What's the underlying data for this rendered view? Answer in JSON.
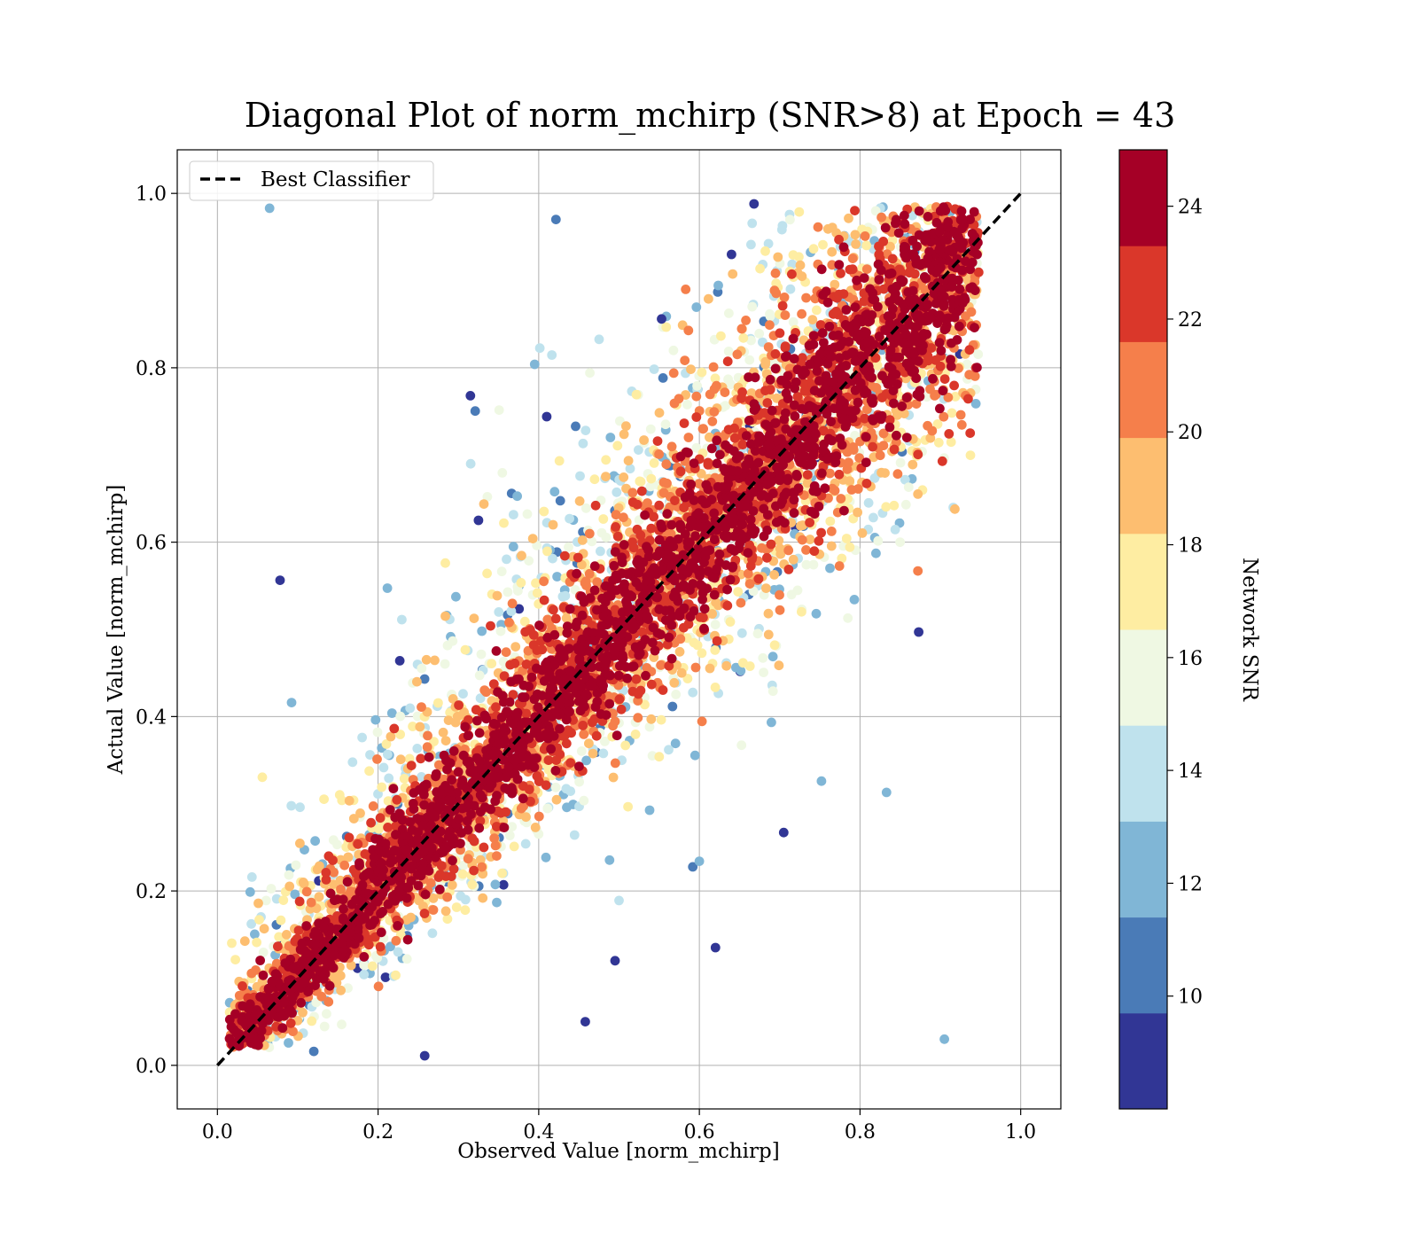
{
  "chart_data": {
    "type": "scatter",
    "title": "Diagonal Plot of norm_mchirp (SNR>8) at Epoch = 43",
    "xlabel": "Observed Value [norm_mchirp]",
    "ylabel": "Actual Value [norm_mchirp]",
    "xlim": [
      -0.05,
      1.05
    ],
    "ylim": [
      -0.05,
      1.05
    ],
    "xticks": [
      "0.0",
      "0.2",
      "0.4",
      "0.6",
      "0.8",
      "1.0"
    ],
    "yticks": [
      "0.0",
      "0.2",
      "0.4",
      "0.6",
      "0.8",
      "1.0"
    ],
    "grid": true,
    "legend": {
      "position": "upper-left",
      "entries": [
        "Best Classifier"
      ]
    },
    "reference_line": {
      "name": "Best Classifier",
      "style": "dashed",
      "color": "#000000",
      "x": [
        0,
        1
      ],
      "y": [
        0,
        1
      ]
    },
    "colorbar": {
      "label": "Network SNR",
      "range": [
        8,
        25
      ],
      "ticks": [
        "10",
        "12",
        "14",
        "16",
        "18",
        "20",
        "22",
        "24"
      ],
      "tick_values": [
        10,
        12,
        14,
        16,
        18,
        20,
        22,
        24
      ],
      "bins": [
        8,
        9.7,
        11.4,
        13.1,
        14.8,
        16.5,
        18.2,
        19.9,
        21.6,
        23.3,
        25
      ],
      "colors": [
        "#313695",
        "#4a7bb7",
        "#80b6d6",
        "#bfe2ed",
        "#eff8e3",
        "#feeda2",
        "#fdbe70",
        "#f57f4b",
        "#da372a",
        "#a50026"
      ]
    },
    "series": [
      {
        "points_note_values_only": true,
        "points": [
          [
            0.668,
            0.988,
            8.5
          ],
          [
            0.315,
            0.768,
            9.0
          ],
          [
            0.227,
            0.464,
            9.0
          ],
          [
            0.258,
            0.011,
            8.6
          ],
          [
            0.458,
            0.05,
            9.1
          ],
          [
            0.752,
            0.326,
            11.5
          ],
          [
            0.833,
            0.313,
            12.0
          ],
          [
            0.705,
            0.267,
            8.8
          ],
          [
            0.62,
            0.135,
            9.2
          ],
          [
            0.6,
            0.234,
            12.4
          ],
          [
            0.873,
            0.497,
            8.9
          ],
          [
            0.872,
            0.567,
            21.0
          ],
          [
            0.918,
            0.638,
            19.0
          ],
          [
            0.41,
            0.744,
            9.3
          ],
          [
            0.395,
            0.804,
            13.0
          ],
          [
            0.325,
            0.625,
            8.7
          ],
          [
            0.5,
            0.189,
            14.5
          ],
          [
            0.495,
            0.12,
            9.0
          ],
          [
            0.553,
            0.856,
            9.4
          ],
          [
            0.583,
            0.89,
            21.5
          ],
          [
            0.64,
            0.93,
            8.8
          ],
          [
            0.905,
            0.03,
            12.0
          ],
          [
            0.12,
            0.016,
            11.0
          ],
          [
            0.065,
            0.983,
            13.0
          ]
        ]
      }
    ]
  }
}
